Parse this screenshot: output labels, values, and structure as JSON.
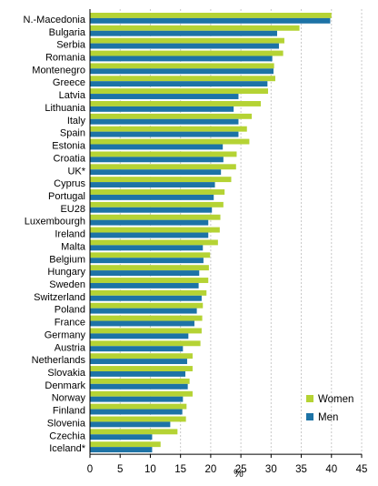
{
  "chart_data": {
    "type": "bar",
    "orientation": "horizontal",
    "categories": [
      "N.-Macedonia",
      "Bulgaria",
      "Serbia",
      "Romania",
      "Montenegro",
      "Greece",
      "Latvia",
      "Lithuania",
      "Italy",
      "Spain",
      "Estonia",
      "Croatia",
      "UK*",
      "Cyprus",
      "Portugal",
      "EU28",
      "Luxembourgh",
      "Ireland",
      "Malta",
      "Belgium",
      "Hungary",
      "Sweden",
      "Switzerland",
      "Poland",
      "France",
      "Germany",
      "Austria",
      "Netherlands",
      "Slovakia",
      "Denmark",
      "Norway",
      "Finland",
      "Slovenia",
      "Czechia",
      "Iceland*"
    ],
    "series": [
      {
        "name": "Women",
        "color": "#b5d334",
        "values": [
          40.0,
          34.7,
          32.2,
          32.0,
          30.5,
          30.7,
          29.5,
          28.3,
          26.8,
          26.0,
          26.4,
          24.3,
          24.2,
          23.4,
          22.3,
          22.1,
          21.6,
          21.5,
          21.2,
          19.9,
          19.7,
          19.6,
          19.3,
          18.7,
          18.6,
          18.5,
          18.3,
          17.0,
          17.0,
          16.5,
          17.0,
          16.0,
          15.9,
          14.5,
          11.7
        ]
      },
      {
        "name": "Men",
        "color": "#1d73a6",
        "values": [
          39.8,
          31.0,
          31.3,
          30.2,
          30.4,
          29.4,
          24.6,
          23.8,
          24.6,
          24.6,
          22.0,
          22.1,
          21.7,
          20.7,
          20.5,
          20.2,
          19.6,
          19.6,
          18.7,
          18.8,
          18.1,
          18.0,
          18.5,
          17.7,
          17.3,
          16.3,
          15.4,
          16.1,
          15.8,
          16.2,
          15.4,
          15.3,
          13.3,
          10.3,
          10.3
        ]
      }
    ],
    "x_ticks": [
      "0",
      "5",
      "10",
      "15",
      "20",
      "25",
      "30",
      "35",
      "40",
      "45"
    ],
    "xlabel": "%",
    "xlim": [
      0,
      45
    ],
    "grid": "vertical",
    "legend_position": "bottom-right"
  }
}
